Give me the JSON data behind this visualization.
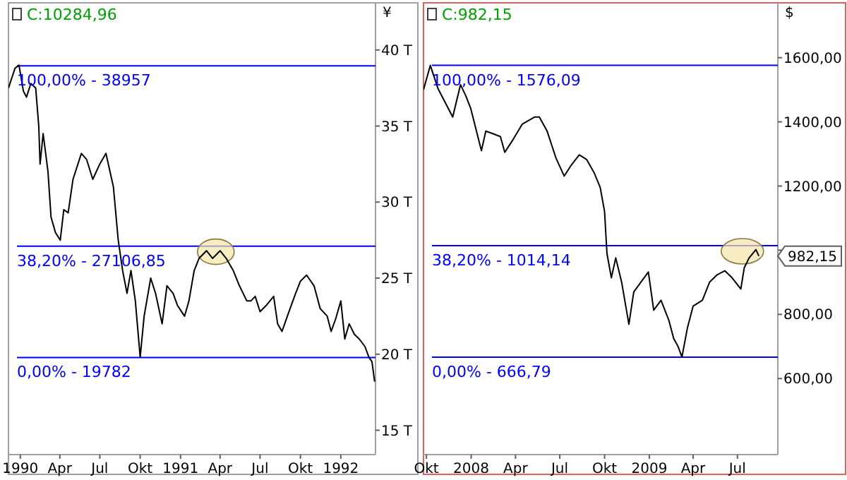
{
  "chart_data": [
    {
      "type": "line",
      "title": "C:10284,96",
      "ylabel": "¥",
      "x": [
        "1989-12-05",
        "1989-12-20",
        "1989-12-29",
        "1990-01-08",
        "1990-01-15",
        "1990-01-25",
        "1990-02-05",
        "1990-02-12",
        "1990-02-15",
        "1990-02-22",
        "1990-03-05",
        "1990-03-12",
        "1990-03-22",
        "1990-04-02",
        "1990-04-10",
        "1990-04-20",
        "1990-05-01",
        "1990-05-20",
        "1990-06-01",
        "1990-06-15",
        "1990-07-01",
        "1990-07-15",
        "1990-08-01",
        "1990-08-12",
        "1990-08-22",
        "1990-09-01",
        "1990-09-10",
        "1990-09-20",
        "1990-10-01",
        "1990-10-10",
        "1990-10-25",
        "1990-11-05",
        "1990-11-20",
        "1990-12-01",
        "1990-12-15",
        "1990-12-25",
        "1991-01-10",
        "1991-01-20",
        "1991-02-01",
        "1991-02-12",
        "1991-03-01",
        "1991-03-15",
        "1991-04-01",
        "1991-04-15",
        "1991-05-01",
        "1991-05-15",
        "1991-06-01",
        "1991-06-10",
        "1991-06-20",
        "1991-07-01",
        "1991-07-15",
        "1991-08-01",
        "1991-08-10",
        "1991-08-20",
        "1991-09-05",
        "1991-09-20",
        "1991-10-01",
        "1991-10-15",
        "1991-11-01",
        "1991-11-15",
        "1991-12-01",
        "1991-12-10",
        "1991-12-20",
        "1992-01-01",
        "1992-01-10",
        "1992-01-20",
        "1992-02-01",
        "1992-02-12",
        "1992-02-25",
        "1992-03-05",
        "1992-03-12",
        "1992-03-18"
      ],
      "series": [
        {
          "color": "#000000",
          "values": [
            37.5,
            38.8,
            39.0,
            37.3,
            36.9,
            37.8,
            37.5,
            35.0,
            32.5,
            34.5,
            32.0,
            29.0,
            28.0,
            27.5,
            29.5,
            29.3,
            31.5,
            33.2,
            32.8,
            31.5,
            32.5,
            33.2,
            31.0,
            27.5,
            25.5,
            24.0,
            25.5,
            23.5,
            19.8,
            22.5,
            25.0,
            24.0,
            22.0,
            24.5,
            24.0,
            23.2,
            22.5,
            23.5,
            25.5,
            26.3,
            26.8,
            26.3,
            26.8,
            26.3,
            25.5,
            24.5,
            23.5,
            23.5,
            23.8,
            22.8,
            23.2,
            23.8,
            22.0,
            21.5,
            22.8,
            24.0,
            24.8,
            25.2,
            24.5,
            23.0,
            22.5,
            21.5,
            22.3,
            23.5,
            21.0,
            22.0,
            21.3,
            21.0,
            20.5,
            19.8,
            19.5,
            18.2
          ]
        }
      ],
      "xlim": [
        "1989-12-05",
        "1992-03-20"
      ],
      "xticks": [
        {
          "value": "1990-01-01",
          "label": "1990"
        },
        {
          "value": "1990-04-01",
          "label": "Apr"
        },
        {
          "value": "1990-07-01",
          "label": "Jul"
        },
        {
          "value": "1990-10-01",
          "label": "Okt"
        },
        {
          "value": "1991-01-01",
          "label": "1991"
        },
        {
          "value": "1991-04-01",
          "label": "Apr"
        },
        {
          "value": "1991-07-01",
          "label": "Jul"
        },
        {
          "value": "1991-10-01",
          "label": "Okt"
        },
        {
          "value": "1992-01-01",
          "label": "1992"
        }
      ],
      "ylim": [
        13.4,
        43.1
      ],
      "yticks": [
        {
          "value": 15,
          "label": "15 T"
        },
        {
          "value": 20,
          "label": "20 T"
        },
        {
          "value": 25,
          "label": "25 T"
        },
        {
          "value": 30,
          "label": "30 T"
        },
        {
          "value": 35,
          "label": "35 T"
        },
        {
          "value": 40,
          "label": "40 T"
        }
      ],
      "ref_lines": [
        {
          "axis": "y",
          "value": 38.957,
          "color": "#0000ff"
        },
        {
          "axis": "y",
          "value": 27.10685,
          "color": "#0000ff"
        },
        {
          "axis": "y",
          "value": 19.782,
          "color": "#0000ff"
        }
      ],
      "annotations": [
        "100,00% - 38957",
        "38,20% - 27106,85",
        "0,00% - 19782"
      ]
    },
    {
      "type": "line",
      "title": "C:982,15",
      "ylabel": "$",
      "x": [
        "2007-09-25",
        "2007-10-09",
        "2007-10-25",
        "2007-11-09",
        "2007-11-24",
        "2007-12-10",
        "2007-12-21",
        "2007-12-31",
        "2008-01-22",
        "2008-01-31",
        "2008-02-15",
        "2008-03-01",
        "2008-03-10",
        "2008-03-25",
        "2008-04-15",
        "2008-05-10",
        "2008-05-20",
        "2008-06-05",
        "2008-06-23",
        "2008-07-10",
        "2008-07-25",
        "2008-08-10",
        "2008-08-25",
        "2008-09-10",
        "2008-09-22",
        "2008-10-01",
        "2008-10-06",
        "2008-10-15",
        "2008-10-24",
        "2008-11-05",
        "2008-11-20",
        "2008-11-30",
        "2008-12-15",
        "2008-12-30",
        "2009-01-10",
        "2009-01-25",
        "2009-02-10",
        "2009-02-20",
        "2009-03-01",
        "2009-03-09",
        "2009-03-20",
        "2009-04-01",
        "2009-04-20",
        "2009-05-05",
        "2009-05-20",
        "2009-06-05",
        "2009-06-20",
        "2009-07-08",
        "2009-07-15",
        "2009-07-25",
        "2009-08-08",
        "2009-08-14"
      ],
      "series": [
        {
          "color": "#000000",
          "values": [
            1500,
            1576,
            1503,
            1459,
            1415,
            1516,
            1481,
            1442,
            1310,
            1371,
            1363,
            1354,
            1305,
            1340,
            1393,
            1415,
            1415,
            1371,
            1288,
            1231,
            1266,
            1297,
            1283,
            1240,
            1196,
            1121,
            989,
            914,
            976,
            901,
            769,
            870,
            901,
            932,
            813,
            844,
            782,
            725,
            700,
            667,
            756,
            826,
            844,
            901,
            923,
            936,
            914,
            879,
            945,
            976,
            1002,
            982
          ]
        }
      ],
      "xlim": [
        "2007-09-25",
        "2009-09-22"
      ],
      "xticks": [
        {
          "value": "2007-10-01",
          "label": "Okt"
        },
        {
          "value": "2008-01-01",
          "label": "2008"
        },
        {
          "value": "2008-04-01",
          "label": "Apr"
        },
        {
          "value": "2008-07-01",
          "label": "Jul"
        },
        {
          "value": "2008-10-01",
          "label": "Okt"
        },
        {
          "value": "2009-01-01",
          "label": "2009"
        },
        {
          "value": "2009-04-01",
          "label": "Apr"
        },
        {
          "value": "2009-07-01",
          "label": "Jul"
        }
      ],
      "ylim": [
        363,
        1771
      ],
      "yticks": [
        {
          "value": 600,
          "label": "600,00"
        },
        {
          "value": 800,
          "label": "800,00"
        },
        {
          "value": 1000,
          "label": null
        },
        {
          "value": 1200,
          "label": "1200,00"
        },
        {
          "value": 1400,
          "label": "1400,00"
        },
        {
          "value": 1600,
          "label": "1600,00"
        }
      ],
      "ref_lines": [
        {
          "axis": "y",
          "value": 1576.09,
          "color": "#0000ff"
        },
        {
          "axis": "y",
          "value": 1014.14,
          "color": "#0000ff"
        },
        {
          "axis": "y",
          "value": 666.79,
          "color": "#0000ff"
        }
      ],
      "annotations": [
        "100,00% - 1576,09",
        "38,20% - 1014,14",
        "0,00% - 666,79",
        "982,15"
      ]
    }
  ]
}
